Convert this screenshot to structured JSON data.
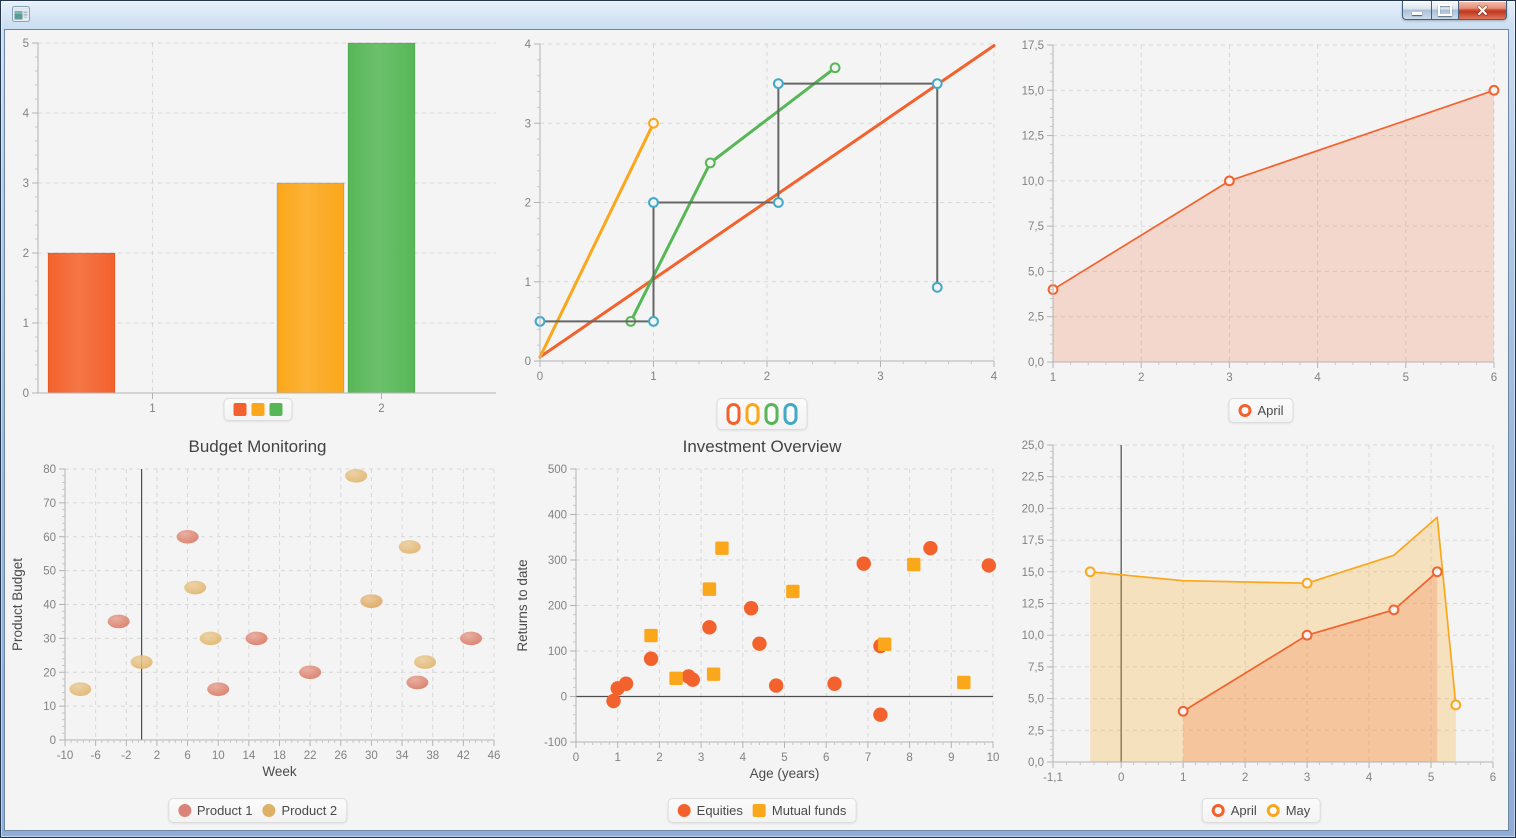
{
  "window": {
    "title": "",
    "controls": [
      {
        "name": "minimize"
      },
      {
        "name": "maximize"
      },
      {
        "name": "close"
      }
    ]
  },
  "colors": {
    "chart1": "#f3622d",
    "chart2": "#fba71b",
    "chart3": "#57b757",
    "chart4": "#41a9c9",
    "step_line": "#666666",
    "bubble_salmon": "#dc8470",
    "bubble_gold": "#e0b266"
  },
  "chart_data": [
    {
      "type": "bar",
      "title": "",
      "grid": true,
      "legend_position": "bottom",
      "x": {
        "type": "category",
        "categories": [
          "1",
          "2"
        ]
      },
      "y": {
        "min": 0,
        "max": 5,
        "ticks": {
          "values": [
            0,
            1,
            2,
            3,
            4,
            5
          ]
        }
      },
      "bars": [
        {
          "category": "1",
          "value": 2,
          "color": "#f3622d"
        },
        {
          "category": "2",
          "value": 3,
          "color": "#fba71b"
        },
        {
          "category": "2",
          "value": 5,
          "color": "#57b757"
        }
      ],
      "legend": {
        "items": [
          {
            "label": "",
            "symbol": "square",
            "color": "#f3622d"
          },
          {
            "label": "",
            "symbol": "square",
            "color": "#fba71b"
          },
          {
            "label": "",
            "symbol": "square",
            "color": "#57b757"
          }
        ]
      }
    },
    {
      "type": "line",
      "title": "",
      "grid": true,
      "legend_position": "bottom",
      "x": {
        "min": 0,
        "max": 4,
        "ticks": {
          "values": [
            0,
            1,
            2,
            3,
            4
          ]
        }
      },
      "y": {
        "min": 0,
        "max": 4,
        "ticks": {
          "values": [
            0,
            1,
            2,
            3,
            4
          ]
        }
      },
      "series": [
        {
          "name": "",
          "color": "#f3622d",
          "width": 3,
          "points": [
            [
              0,
              0.05
            ],
            [
              4,
              3.98
            ]
          ],
          "markers": "none"
        },
        {
          "name": "",
          "color": "#fba71b",
          "width": 3,
          "points": [
            [
              0,
              0.05
            ],
            [
              1,
              3
            ]
          ],
          "markers": [
            [
              1,
              3
            ]
          ]
        },
        {
          "name": "",
          "color": "#57b757",
          "width": 3,
          "points": [
            [
              0.8,
              0.5
            ],
            [
              1.5,
              2.5
            ],
            [
              2.6,
              3.7
            ]
          ],
          "markers": "all"
        },
        {
          "name": "",
          "color": "#666666",
          "marker_color": "#41a9c9",
          "width": 2,
          "points": [
            [
              0,
              0.5
            ],
            [
              1,
              0.5
            ],
            [
              1,
              2
            ],
            [
              2.1,
              2
            ],
            [
              2.1,
              3.5
            ],
            [
              3.5,
              3.5
            ],
            [
              3.5,
              0.93
            ]
          ],
          "markers": "all"
        }
      ],
      "legend": {
        "items": [
          {
            "label": "",
            "symbol": "capsule",
            "color": "#f3622d"
          },
          {
            "label": "",
            "symbol": "capsule",
            "color": "#fba71b"
          },
          {
            "label": "",
            "symbol": "capsule",
            "color": "#57b757"
          },
          {
            "label": "",
            "symbol": "capsule",
            "color": "#41a9c9"
          }
        ]
      }
    },
    {
      "type": "area",
      "title": "",
      "grid": true,
      "legend_position": "bottom",
      "x": {
        "min": 1,
        "max": 6,
        "ticks": {
          "values": [
            1,
            2,
            3,
            4,
            5,
            6
          ]
        }
      },
      "y": {
        "min": 0,
        "max": 17.5,
        "ticks": {
          "values": [
            0,
            2.5,
            5,
            7.5,
            10,
            12.5,
            15,
            17.5
          ],
          "labels": [
            "0,0",
            "2,5",
            "5,0",
            "7,5",
            "10,0",
            "12,5",
            "15,0",
            "17,5"
          ]
        }
      },
      "series": [
        {
          "name": "April",
          "color": "#f3622d",
          "fill": "rgba(243,98,45,0.2)",
          "width": 1.7,
          "points": [
            [
              1,
              4
            ],
            [
              3,
              10
            ],
            [
              6,
              15
            ]
          ],
          "markers": "all"
        }
      ],
      "legend": {
        "items": [
          {
            "label": "April",
            "symbol": "ring",
            "color": "#f3622d"
          }
        ]
      }
    },
    {
      "type": "bubble",
      "title": "Budget Monitoring",
      "grid": true,
      "legend_position": "bottom",
      "zero_line": "x",
      "x": {
        "label": "Week",
        "min": -10,
        "max": 46,
        "ticks": {
          "values": [
            -10,
            -6,
            -2,
            2,
            6,
            10,
            14,
            18,
            22,
            26,
            30,
            34,
            38,
            42,
            46
          ]
        }
      },
      "y": {
        "label": "Product Budget",
        "min": 0,
        "max": 80,
        "ticks": {
          "values": [
            0,
            10,
            20,
            30,
            40,
            50,
            60,
            70,
            80
          ]
        }
      },
      "series": [
        {
          "name": "Product 1",
          "color": "#dc8470",
          "points": [
            [
              -3,
              35
            ],
            [
              6,
              60
            ],
            [
              10,
              15
            ],
            [
              15,
              30
            ],
            [
              22,
              20
            ],
            [
              30,
              41
            ],
            [
              36,
              17
            ],
            [
              43,
              30
            ]
          ]
        },
        {
          "name": "Product 2",
          "color": "#e0b266",
          "opacity": 0.88,
          "points": [
            [
              -8,
              15
            ],
            [
              0,
              23
            ],
            [
              7,
              45
            ],
            [
              9,
              30
            ],
            [
              28,
              78
            ],
            [
              30,
              41
            ],
            [
              35,
              57
            ],
            [
              37,
              23
            ]
          ]
        }
      ],
      "legend": {
        "items": [
          {
            "label": "Product 1",
            "symbol": "circle",
            "color": "#d9837a"
          },
          {
            "label": "Product 2",
            "symbol": "circle",
            "color": "#ddb266"
          }
        ]
      }
    },
    {
      "type": "scatter",
      "title": "Investment Overview",
      "grid": true,
      "legend_position": "bottom",
      "zero_line": "y",
      "x": {
        "label": "Age (years)",
        "min": 0,
        "max": 10,
        "ticks": {
          "values": [
            0,
            1,
            2,
            3,
            4,
            5,
            6,
            7,
            8,
            9,
            10
          ]
        }
      },
      "y": {
        "label": "Returns to date",
        "min": -100,
        "max": 500,
        "ticks": {
          "values": [
            -100,
            0,
            100,
            200,
            300,
            400,
            500
          ]
        }
      },
      "series": [
        {
          "name": "Equities",
          "color": "#f3622d",
          "shape": "circle",
          "points": [
            [
              0.9,
              -10
            ],
            [
              1.0,
              18
            ],
            [
              1.2,
              28
            ],
            [
              1.8,
              83
            ],
            [
              2.7,
              44
            ],
            [
              2.8,
              37
            ],
            [
              3.2,
              152
            ],
            [
              4.2,
              194
            ],
            [
              4.4,
              116
            ],
            [
              4.8,
              24
            ],
            [
              6.2,
              28
            ],
            [
              6.9,
              292
            ],
            [
              7.3,
              111
            ],
            [
              7.3,
              -40
            ],
            [
              8.5,
              326
            ],
            [
              9.9,
              288
            ]
          ]
        },
        {
          "name": "Mutual funds",
          "color": "#fba71b",
          "shape": "square",
          "points": [
            [
              1.8,
              134
            ],
            [
              2.4,
              40
            ],
            [
              3.2,
              236
            ],
            [
              3.3,
              49
            ],
            [
              3.5,
              326
            ],
            [
              5.2,
              231
            ],
            [
              7.4,
              115
            ],
            [
              8.1,
              290
            ],
            [
              9.3,
              31
            ]
          ]
        }
      ],
      "legend": {
        "items": [
          {
            "label": "Equities",
            "symbol": "circle",
            "color": "#f3622d"
          },
          {
            "label": "Mutual funds",
            "symbol": "square",
            "color": "#fba71b"
          }
        ]
      }
    },
    {
      "type": "area",
      "title": "",
      "grid": true,
      "legend_position": "bottom",
      "zero_line": "x",
      "x": {
        "min": -1.1,
        "max": 6,
        "ticks": {
          "values": [
            -1.1,
            0,
            1,
            2,
            3,
            4,
            5,
            6
          ],
          "labels": [
            "-1,1",
            "0",
            "1",
            "2",
            "3",
            "4",
            "5",
            "6"
          ]
        }
      },
      "y": {
        "min": 0,
        "max": 25,
        "ticks": {
          "values": [
            0,
            2.5,
            5,
            7.5,
            10,
            12.5,
            15,
            17.5,
            20,
            22.5,
            25
          ],
          "labels": [
            "0,0",
            "2,5",
            "5,0",
            "7,5",
            "10,0",
            "12,5",
            "15,0",
            "17,5",
            "20,0",
            "22,5",
            "25,0"
          ]
        }
      },
      "series": [
        {
          "name": "May",
          "color": "#fba71b",
          "fill": "rgba(251,167,27,0.25)",
          "width": 1.7,
          "points": [
            [
              -0.5,
              15
            ],
            [
              1,
              14.3
            ],
            [
              3,
              14.1
            ],
            [
              4.4,
              16.3
            ],
            [
              5.1,
              19.3
            ],
            [
              5.4,
              4.5
            ]
          ],
          "markers": [
            [
              -0.5,
              15
            ],
            [
              3,
              14.1
            ],
            [
              5.4,
              4.5
            ]
          ]
        },
        {
          "name": "April",
          "color": "#f3622d",
          "fill": "rgba(243,98,45,0.22)",
          "width": 1.7,
          "points": [
            [
              1,
              4
            ],
            [
              3,
              10
            ],
            [
              4.4,
              12
            ],
            [
              5.1,
              15
            ]
          ],
          "markers": "all"
        }
      ],
      "legend": {
        "items": [
          {
            "label": "April",
            "symbol": "ring",
            "color": "#f3622d"
          },
          {
            "label": "May",
            "symbol": "ring",
            "color": "#fba71b"
          }
        ]
      }
    }
  ]
}
